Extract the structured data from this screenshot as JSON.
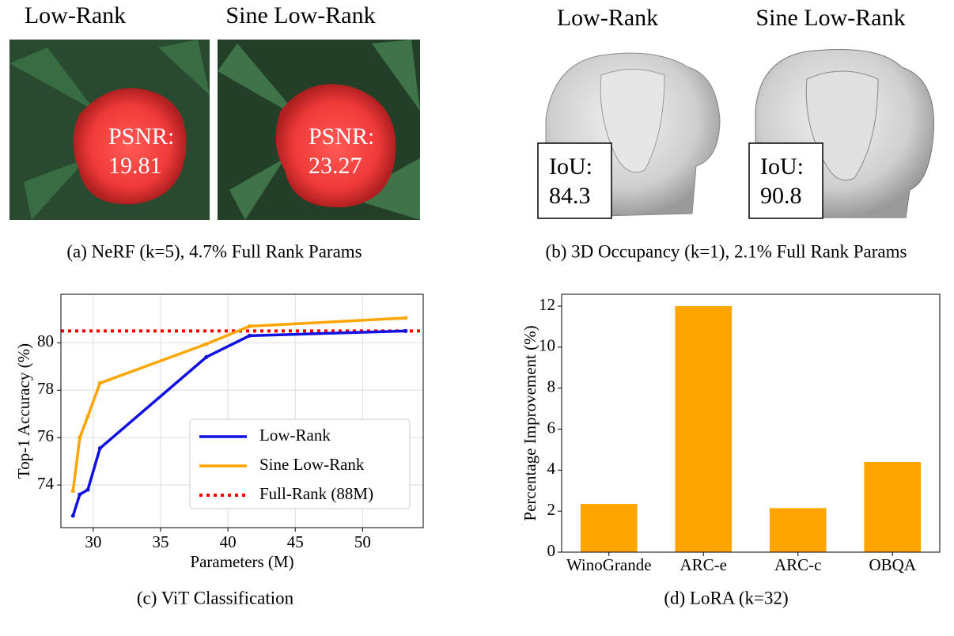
{
  "panels": [
    {
      "labels": [
        "Low-Rank",
        "Sine Low-Rank"
      ],
      "metric": "PSNR:",
      "scores": [
        19.81,
        23.27
      ],
      "caption": "(a) NeRF (k=5), 4.7% Full Rank Params"
    },
    {
      "labels": [
        "Low-Rank",
        "Sine Low-Rank"
      ],
      "metric": "IoU:",
      "scores": [
        84.3,
        90.8
      ],
      "caption": "(b) 3D Occupancy (k=1), 2.1% Full Rank Params"
    }
  ],
  "chart_data": [
    {
      "type": "line",
      "caption": "(c) ViT Classification",
      "xlabel": "Parameters (M)",
      "ylabel": "Top-1 Accuracy (%)",
      "x": [
        28.5,
        29.0,
        29.6,
        30.5,
        38.4,
        41.6,
        53.2
      ],
      "series": [
        {
          "name": "Low-Rank",
          "color": "#1010e0",
          "values": [
            72.7,
            73.6,
            73.8,
            75.55,
            79.4,
            80.3,
            80.5
          ]
        },
        {
          "name": "Sine Low-Rank",
          "color": "#ffa500",
          "values": [
            73.75,
            76.0,
            76.9,
            78.3,
            79.95,
            80.7,
            81.05
          ]
        }
      ],
      "reference": {
        "name": "Full-Rank (88M)",
        "color": "#ff0000",
        "value": 80.5
      },
      "xlim": [
        27.6,
        54.5
      ],
      "ylim": [
        72.2,
        82.05
      ],
      "xticks": [
        30,
        35,
        40,
        45,
        50
      ],
      "yticks": [
        74,
        76,
        78,
        80
      ],
      "grid": true,
      "legend": "lower right"
    },
    {
      "type": "bar",
      "caption": "(d) LoRA (k=32)",
      "ylabel": "Percentage Improvement (%)",
      "categories": [
        "WinoGrande",
        "ARC-e",
        "ARC-c",
        "OBQA"
      ],
      "values": [
        2.35,
        12.0,
        2.15,
        4.4
      ],
      "color": "#ffa500",
      "ylim": [
        0,
        12.58
      ],
      "yticks": [
        0,
        2,
        4,
        6,
        8,
        10,
        12
      ],
      "grid": false
    }
  ]
}
